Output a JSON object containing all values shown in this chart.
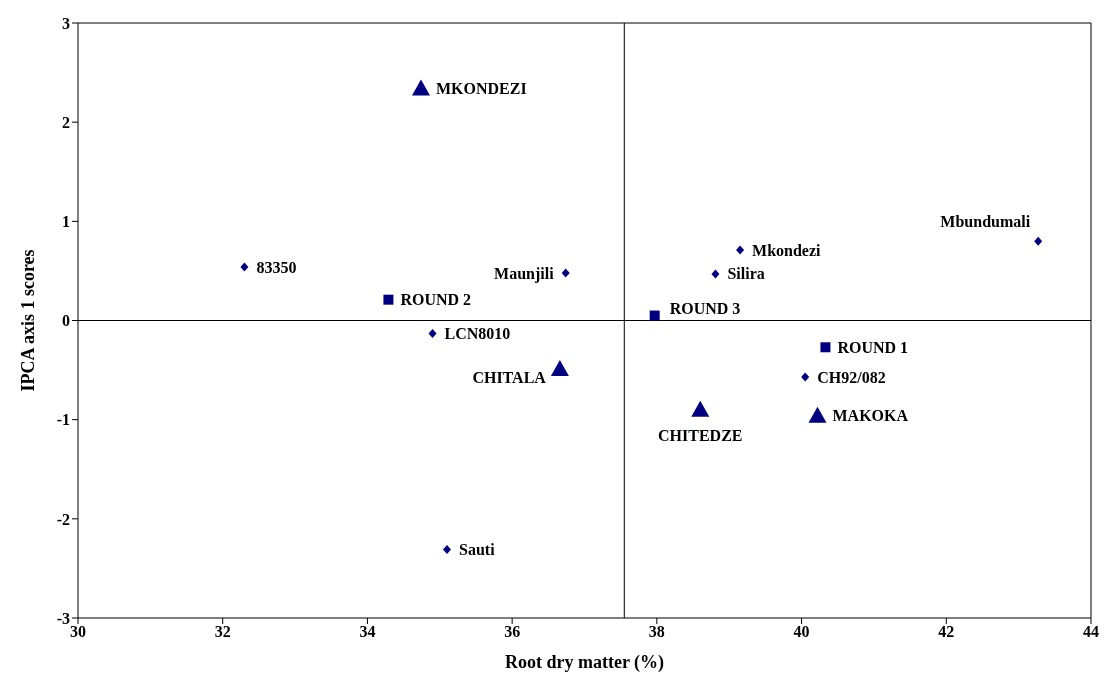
{
  "chart_data": {
    "type": "scatter",
    "xlabel": "Root dry matter (%)",
    "ylabel": "IPCA axis 1 scores",
    "xlim": [
      30,
      44
    ],
    "xticks": [
      30,
      32,
      34,
      36,
      38,
      40,
      42,
      44
    ],
    "ylim": [
      -3,
      3
    ],
    "yticks": [
      -3,
      -2,
      -1,
      0,
      1,
      2,
      3
    ],
    "grid": false,
    "legend": false,
    "series": [
      {
        "color": "#000080",
        "marker": "diamond",
        "x": [
          32.3,
          36.74,
          34.9,
          35.1,
          39.15,
          38.81,
          40.05,
          43.27
        ],
        "values": [
          0.54,
          0.48,
          -0.13,
          -2.31,
          0.71,
          0.47,
          -0.57,
          0.8
        ]
      },
      {
        "color": "#000080",
        "marker": "square",
        "x": [
          34.29,
          37.97,
          40.33
        ],
        "values": [
          0.21,
          0.05,
          -0.27
        ]
      },
      {
        "color": "#000080",
        "marker": "triangle",
        "x": [
          34.74,
          36.66,
          38.6,
          40.22
        ],
        "values": [
          2.34,
          -0.49,
          -0.9,
          -0.96
        ]
      }
    ],
    "ref_lines": [
      {
        "axis": "x",
        "value": 37.55,
        "color": "#000000"
      },
      {
        "axis": "y",
        "value": 0,
        "color": "#000000"
      }
    ],
    "annotations": [
      {
        "text": "83350",
        "x": 32.3,
        "y": 0.54
      },
      {
        "text": "Maunjili",
        "x": 36.74,
        "y": 0.48
      },
      {
        "text": "LCN8010",
        "x": 34.9,
        "y": -0.13
      },
      {
        "text": "Sauti",
        "x": 35.1,
        "y": -2.31
      },
      {
        "text": "Mkondezi",
        "x": 39.15,
        "y": 0.71
      },
      {
        "text": "Silira",
        "x": 38.81,
        "y": 0.47
      },
      {
        "text": "CH92/082",
        "x": 40.05,
        "y": -0.57
      },
      {
        "text": "Mbundumali",
        "x": 43.27,
        "y": 0.8
      },
      {
        "text": "ROUND 2",
        "x": 34.29,
        "y": 0.21
      },
      {
        "text": "ROUND 3",
        "x": 37.97,
        "y": 0.05
      },
      {
        "text": "ROUND 1",
        "x": 40.33,
        "y": -0.27
      },
      {
        "text": "MKONDEZI",
        "x": 34.74,
        "y": 2.34
      },
      {
        "text": "CHITALA",
        "x": 36.66,
        "y": -0.49
      },
      {
        "text": "CHITEDZE",
        "x": 38.6,
        "y": -0.9
      },
      {
        "text": "MAKOKA",
        "x": 40.22,
        "y": -0.96
      }
    ]
  }
}
